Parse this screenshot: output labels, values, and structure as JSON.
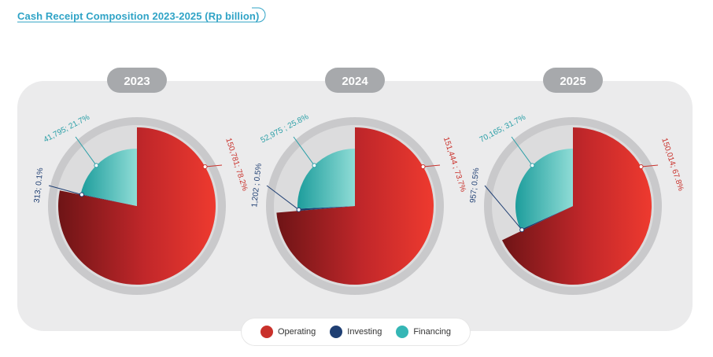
{
  "title": "Cash Receipt Composition 2023-2025 (Rp billion)",
  "colors": {
    "operating": "#d1302c",
    "investing": "#1f3f73",
    "financing": "#2fb5b5",
    "title": "#2fa3c6",
    "year_badge": "#a7a9ac",
    "panel": "#ebebec"
  },
  "legend": [
    {
      "label": "Operating",
      "color": "#c9312b"
    },
    {
      "label": "Investing",
      "color": "#1f3f73"
    },
    {
      "label": "Financing",
      "color": "#35b6b5"
    }
  ],
  "chart_data": [
    {
      "type": "pie",
      "title": "2023",
      "categories": [
        "Operating",
        "Investing",
        "Financing"
      ],
      "values": [
        150781,
        313,
        41795
      ],
      "labels": [
        "150,781; 78.2%",
        "313; 0.1%",
        "41,795; 21.7%"
      ]
    },
    {
      "type": "pie",
      "title": "2024",
      "categories": [
        "Operating",
        "Investing",
        "Financing"
      ],
      "values": [
        151444,
        1202,
        52975
      ],
      "labels": [
        "151,444 ; 73.7%",
        "1,202 ; 0.5%",
        "52,975 ; 25.8%"
      ]
    },
    {
      "type": "pie",
      "title": "2025",
      "categories": [
        "Operating",
        "Investing",
        "Financing"
      ],
      "values": [
        150014,
        957,
        70165
      ],
      "labels": [
        "150,014; 67.8%",
        "957; 0.5%",
        "70,165; 31.7%"
      ]
    }
  ]
}
